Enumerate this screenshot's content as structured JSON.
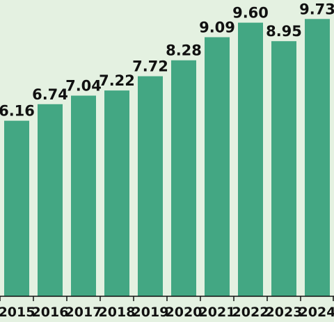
{
  "chart_data": {
    "type": "bar",
    "categories": [
      "2015",
      "2016",
      "2017",
      "2018",
      "2019",
      "2020",
      "2021",
      "2022",
      "2023",
      "2024"
    ],
    "values": [
      6.16,
      6.74,
      7.04,
      7.22,
      7.72,
      8.28,
      9.09,
      9.6,
      8.95,
      9.73
    ],
    "value_labels": [
      "6.16",
      "6.74",
      "7.04",
      "7.22",
      "7.72",
      "8.28",
      "9.09",
      "9.60",
      "8.95",
      "9.73"
    ],
    "title": "",
    "xlabel": "",
    "ylabel": "",
    "ylim": [
      0,
      10.2
    ],
    "grid": false,
    "legend": "none",
    "colors": {
      "background": "#e4f1e1",
      "bar": "#43a783",
      "axis": "#111111",
      "text": "#111111"
    }
  }
}
